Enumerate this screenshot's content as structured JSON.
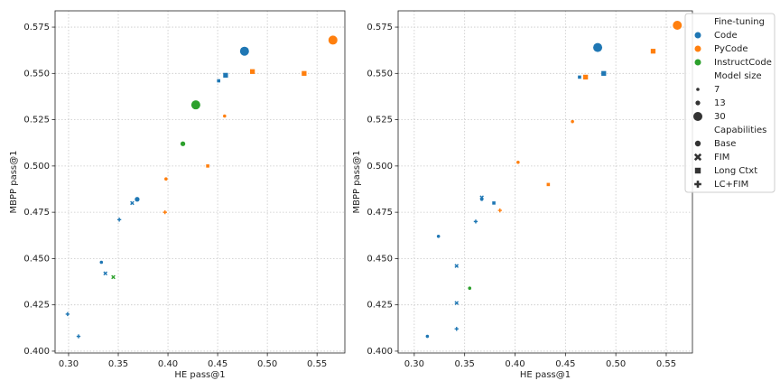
{
  "chart_data": [
    {
      "type": "scatter",
      "xlabel": "HE pass@1",
      "ylabel": "MBPP pass@1",
      "xlim": [
        0.2864,
        0.578
      ],
      "ylim": [
        0.399,
        0.5838
      ],
      "xticks": [
        {
          "value": 0.3,
          "label": "0.30"
        },
        0.35,
        {
          "value": 0.4,
          "label": "0.40"
        },
        0.45,
        {
          "value": 0.5,
          "label": "0.50"
        },
        0.55
      ],
      "yticks": [
        {
          "value": 0.4,
          "label": "0.400"
        },
        0.425,
        {
          "value": 0.45,
          "label": "0.450"
        },
        0.475,
        {
          "value": 0.5,
          "label": "0.500"
        },
        0.525,
        {
          "value": 0.55,
          "label": "0.550"
        },
        0.575
      ],
      "grid": true,
      "points": [
        {
          "x": 0.477,
          "y": 0.562,
          "size": 30,
          "hue": 0,
          "style": 0
        },
        {
          "x": 0.458,
          "y": 0.549,
          "size": 13,
          "hue": 0,
          "style": 2
        },
        {
          "x": 0.451,
          "y": 0.546,
          "size": 7,
          "hue": 0,
          "style": 2
        },
        {
          "x": 0.351,
          "y": 0.471,
          "size": 7,
          "hue": 0,
          "style": 3
        },
        {
          "x": 0.364,
          "y": 0.48,
          "size": 7,
          "hue": 0,
          "style": 1
        },
        {
          "x": 0.369,
          "y": 0.482,
          "size": 13,
          "hue": 0,
          "style": 0
        },
        {
          "x": 0.333,
          "y": 0.448,
          "size": 7,
          "hue": 0,
          "style": 0
        },
        {
          "x": 0.337,
          "y": 0.442,
          "size": 7,
          "hue": 0,
          "style": 1
        },
        {
          "x": 0.299,
          "y": 0.42,
          "size": 7,
          "hue": 0,
          "style": 3
        },
        {
          "x": 0.31,
          "y": 0.408,
          "size": 7,
          "hue": 0,
          "style": 3
        },
        {
          "x": 0.566,
          "y": 0.568,
          "size": 30,
          "hue": 1,
          "style": 0
        },
        {
          "x": 0.485,
          "y": 0.551,
          "size": 13,
          "hue": 1,
          "style": 2
        },
        {
          "x": 0.537,
          "y": 0.55,
          "size": 13,
          "hue": 1,
          "style": 2
        },
        {
          "x": 0.457,
          "y": 0.527,
          "size": 7,
          "hue": 1,
          "style": 0
        },
        {
          "x": 0.44,
          "y": 0.5,
          "size": 7,
          "hue": 1,
          "style": 2
        },
        {
          "x": 0.398,
          "y": 0.493,
          "size": 7,
          "hue": 1,
          "style": 0
        },
        {
          "x": 0.397,
          "y": 0.475,
          "size": 7,
          "hue": 1,
          "style": 3
        },
        {
          "x": 0.428,
          "y": 0.533,
          "size": 30,
          "hue": 2,
          "style": 0
        },
        {
          "x": 0.415,
          "y": 0.512,
          "size": 13,
          "hue": 2,
          "style": 0
        },
        {
          "x": 0.345,
          "y": 0.44,
          "size": 7,
          "hue": 2,
          "style": 1
        }
      ]
    },
    {
      "type": "scatter",
      "xlabel": "HE pass@1",
      "ylabel": "MBPP pass@1",
      "xlim": [
        0.284,
        0.576
      ],
      "ylim": [
        0.399,
        0.5838
      ],
      "xticks": [
        {
          "value": 0.3,
          "label": "0.30"
        },
        0.35,
        {
          "value": 0.4,
          "label": "0.40"
        },
        0.45,
        {
          "value": 0.5,
          "label": "0.50"
        },
        0.55
      ],
      "yticks": [
        {
          "value": 0.4,
          "label": "0.400"
        },
        0.425,
        {
          "value": 0.45,
          "label": "0.450"
        },
        0.475,
        {
          "value": 0.5,
          "label": "0.500"
        },
        0.525,
        {
          "value": 0.55,
          "label": "0.550"
        },
        0.575
      ],
      "grid": true,
      "points": [
        {
          "x": 0.482,
          "y": 0.564,
          "size": 30,
          "hue": 0,
          "style": 0
        },
        {
          "x": 0.488,
          "y": 0.55,
          "size": 13,
          "hue": 0,
          "style": 2
        },
        {
          "x": 0.464,
          "y": 0.548,
          "size": 7,
          "hue": 0,
          "style": 2
        },
        {
          "x": 0.367,
          "y": 0.483,
          "size": 7,
          "hue": 0,
          "style": 1
        },
        {
          "x": 0.367,
          "y": 0.482,
          "size": 7,
          "hue": 0,
          "style": 0
        },
        {
          "x": 0.379,
          "y": 0.48,
          "size": 7,
          "hue": 0,
          "style": 2
        },
        {
          "x": 0.361,
          "y": 0.47,
          "size": 7,
          "hue": 0,
          "style": 3
        },
        {
          "x": 0.324,
          "y": 0.462,
          "size": 7,
          "hue": 0,
          "style": 0
        },
        {
          "x": 0.342,
          "y": 0.446,
          "size": 7,
          "hue": 0,
          "style": 1
        },
        {
          "x": 0.342,
          "y": 0.426,
          "size": 7,
          "hue": 0,
          "style": 1
        },
        {
          "x": 0.342,
          "y": 0.412,
          "size": 7,
          "hue": 0,
          "style": 3
        },
        {
          "x": 0.313,
          "y": 0.408,
          "size": 7,
          "hue": 0,
          "style": 0
        },
        {
          "x": 0.561,
          "y": 0.576,
          "size": 30,
          "hue": 1,
          "style": 0
        },
        {
          "x": 0.537,
          "y": 0.562,
          "size": 13,
          "hue": 1,
          "style": 2
        },
        {
          "x": 0.47,
          "y": 0.548,
          "size": 13,
          "hue": 1,
          "style": 2
        },
        {
          "x": 0.457,
          "y": 0.524,
          "size": 7,
          "hue": 1,
          "style": 0
        },
        {
          "x": 0.403,
          "y": 0.502,
          "size": 7,
          "hue": 1,
          "style": 0
        },
        {
          "x": 0.433,
          "y": 0.49,
          "size": 7,
          "hue": 1,
          "style": 2
        },
        {
          "x": 0.385,
          "y": 0.476,
          "size": 7,
          "hue": 1,
          "style": 3
        },
        {
          "x": 0.355,
          "y": 0.434,
          "size": 7,
          "hue": 2,
          "style": 0
        }
      ],
      "legend": {
        "hue_title": "Fine-tuning",
        "hue": [
          {
            "name": "Code",
            "color": "#1f77b4"
          },
          {
            "name": "PyCode",
            "color": "#ff7f0e"
          },
          {
            "name": "InstructCode",
            "color": "#2ca02c"
          }
        ],
        "size_title": "Model size",
        "sizes": [
          7,
          13,
          30
        ],
        "style_title": "Capabilities",
        "styles": [
          {
            "name": "Base",
            "marker": "circle"
          },
          {
            "name": "FIM",
            "marker": "x"
          },
          {
            "name": "Long Ctxt",
            "marker": "square"
          },
          {
            "name": "LC+FIM",
            "marker": "plus"
          }
        ]
      }
    }
  ]
}
